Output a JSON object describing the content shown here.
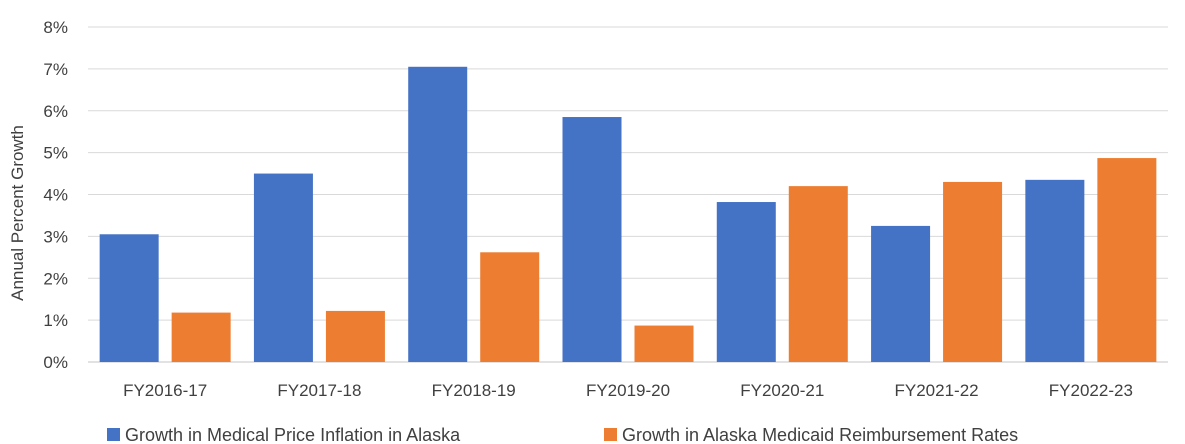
{
  "chart_data": {
    "type": "bar",
    "title": "",
    "xlabel": "",
    "ylabel": "Annual Percent Growth",
    "ylim": [
      0,
      8
    ],
    "yticks": [
      "0%",
      "1%",
      "2%",
      "3%",
      "4%",
      "5%",
      "6%",
      "7%",
      "8%"
    ],
    "grid": true,
    "legend_position": "bottom",
    "categories": [
      "FY2016-17",
      "FY2017-18",
      "FY2018-19",
      "FY2019-20",
      "FY2020-21",
      "FY2021-22",
      "FY2022-23"
    ],
    "series": [
      {
        "name": "Growth in Medical Price Inflation in Alaska",
        "color": "#4472C4",
        "values": [
          3.05,
          4.5,
          7.05,
          5.85,
          3.82,
          3.25,
          4.35
        ]
      },
      {
        "name": "Growth in Alaska Medicaid Reimbursement Rates",
        "color": "#ED7D31",
        "values": [
          1.18,
          1.22,
          2.62,
          0.87,
          4.2,
          4.3,
          4.87
        ]
      }
    ]
  }
}
